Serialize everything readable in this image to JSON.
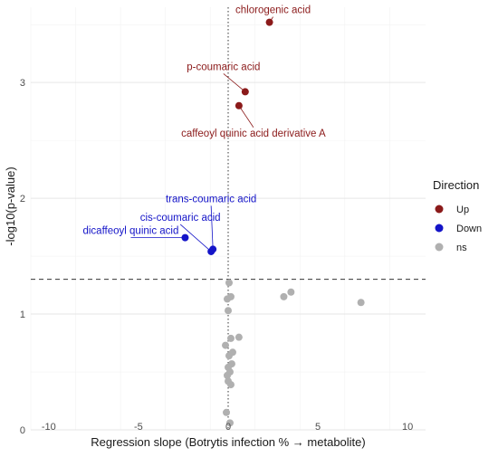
{
  "chart_data": {
    "type": "scatter",
    "title": "",
    "xlabel": "Regression slope (Botrytis infection % → metabolite)",
    "ylabel": "-log10(p-value)",
    "xlim": [
      -11,
      11
    ],
    "ylim": [
      0,
      3.65
    ],
    "x_ticks": [
      -10,
      -5,
      0,
      5,
      10
    ],
    "y_ticks": [
      0,
      1,
      2,
      3
    ],
    "grid": true,
    "threshold_line_y": 1.3,
    "zero_line_x": 0,
    "colors": {
      "Up": "#8B1A1A",
      "Down": "#1414C8",
      "ns": "#b0b0b0"
    },
    "legend": {
      "title": "Direction",
      "position": "right",
      "entries": [
        "Up",
        "Down",
        "ns"
      ]
    },
    "points": [
      {
        "x": 2.3,
        "y": 3.52,
        "group": "Up",
        "label": "chlorogenic acid"
      },
      {
        "x": 0.95,
        "y": 2.92,
        "group": "Up",
        "label": "p-coumaric acid"
      },
      {
        "x": 0.6,
        "y": 2.8,
        "group": "Up",
        "label": "caffeoyl quinic acid derivative A"
      },
      {
        "x": -2.4,
        "y": 1.66,
        "group": "Down",
        "label": "dicaffeoyl quinic acid"
      },
      {
        "x": -0.95,
        "y": 1.54,
        "group": "Down",
        "label": "cis-coumaric acid"
      },
      {
        "x": -0.85,
        "y": 1.56,
        "group": "Down",
        "label": "trans-coumaric acid"
      },
      {
        "x": 3.5,
        "y": 1.19,
        "group": "ns"
      },
      {
        "x": 3.1,
        "y": 1.15,
        "group": "ns"
      },
      {
        "x": 7.4,
        "y": 1.1,
        "group": "ns"
      },
      {
        "x": 0.05,
        "y": 1.27,
        "group": "ns"
      },
      {
        "x": 0.15,
        "y": 1.15,
        "group": "ns"
      },
      {
        "x": -0.05,
        "y": 1.13,
        "group": "ns"
      },
      {
        "x": 0.0,
        "y": 1.03,
        "group": "ns"
      },
      {
        "x": 0.6,
        "y": 0.8,
        "group": "ns"
      },
      {
        "x": 0.15,
        "y": 0.79,
        "group": "ns"
      },
      {
        "x": -0.15,
        "y": 0.73,
        "group": "ns"
      },
      {
        "x": 0.25,
        "y": 0.67,
        "group": "ns"
      },
      {
        "x": 0.05,
        "y": 0.64,
        "group": "ns"
      },
      {
        "x": 0.2,
        "y": 0.57,
        "group": "ns"
      },
      {
        "x": 0.0,
        "y": 0.54,
        "group": "ns"
      },
      {
        "x": 0.1,
        "y": 0.5,
        "group": "ns"
      },
      {
        "x": -0.05,
        "y": 0.47,
        "group": "ns"
      },
      {
        "x": 0.0,
        "y": 0.42,
        "group": "ns"
      },
      {
        "x": 0.15,
        "y": 0.39,
        "group": "ns"
      },
      {
        "x": -0.1,
        "y": 0.15,
        "group": "ns"
      },
      {
        "x": 0.1,
        "y": 0.06,
        "group": "ns"
      }
    ]
  }
}
